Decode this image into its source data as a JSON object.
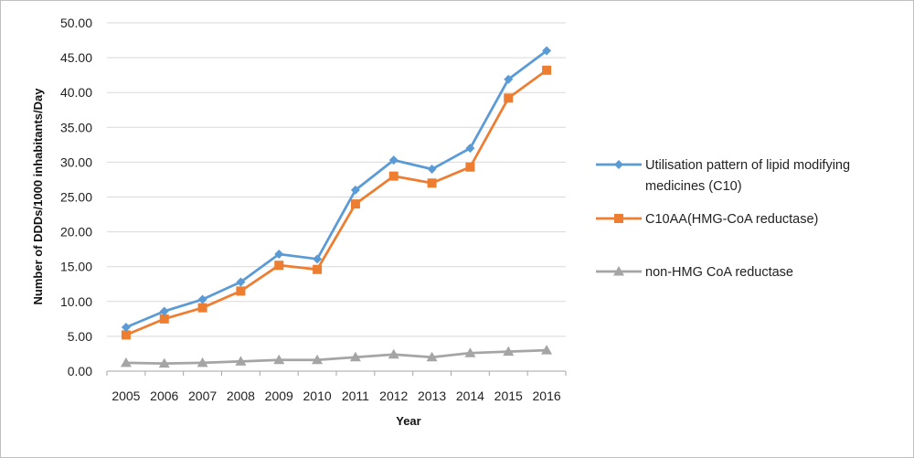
{
  "chart_data": {
    "type": "line",
    "title": "",
    "xlabel": "Year",
    "ylabel": "Number of DDDs/1000 inhabitants/Day",
    "categories": [
      "2005",
      "2006",
      "2007",
      "2008",
      "2009",
      "2010",
      "2011",
      "2012",
      "2013",
      "2014",
      "2015",
      "2016"
    ],
    "yticks": [
      "0.00",
      "5.00",
      "10.00",
      "15.00",
      "20.00",
      "25.00",
      "30.00",
      "35.00",
      "40.00",
      "45.00",
      "50.00"
    ],
    "ylim": [
      0,
      50
    ],
    "grid": true,
    "legend_position": "right",
    "series": [
      {
        "name": "Utilisation pattern of lipid modifying medicines (C10)",
        "legend_lines": [
          "Utilisation pattern of lipid modifying",
          "medicines (C10)"
        ],
        "marker": "diamond",
        "color": "#5b9bd5",
        "values": [
          6.3,
          8.6,
          10.3,
          12.8,
          16.8,
          16.1,
          26.0,
          30.3,
          29.0,
          32.0,
          41.9,
          46.0
        ]
      },
      {
        "name": "C10AA(HMG-CoA reductase)",
        "legend_lines": [
          "C10AA(HMG-CoA reductase)"
        ],
        "marker": "square",
        "color": "#ed7d31",
        "values": [
          5.2,
          7.5,
          9.1,
          11.5,
          15.2,
          14.6,
          24.0,
          28.0,
          27.0,
          29.3,
          39.2,
          43.2
        ]
      },
      {
        "name": "non-HMG CoA reductase",
        "legend_lines": [
          "non-HMG CoA reductase"
        ],
        "marker": "triangle",
        "color": "#a5a5a5",
        "values": [
          1.2,
          1.1,
          1.2,
          1.4,
          1.6,
          1.6,
          2.0,
          2.4,
          2.0,
          2.6,
          2.8,
          3.0
        ]
      }
    ]
  }
}
